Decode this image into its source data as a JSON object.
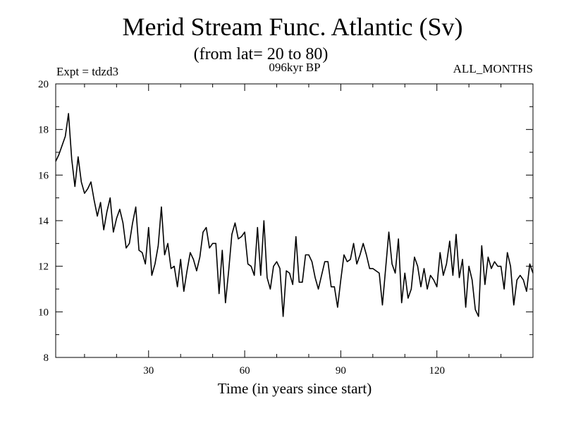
{
  "chart_data": {
    "type": "line",
    "title": "Merid Stream Func. Atlantic (Sv)",
    "subtitle": "(from lat= 20 to 80)",
    "left_note": "Expt = tdzd3",
    "center_note": "096kyr BP",
    "right_note": "ALL_MONTHS",
    "xlabel": "Time (in years since start)",
    "ylabel": "",
    "xlim": [
      1,
      150
    ],
    "ylim": [
      8,
      20
    ],
    "xticks": [
      30,
      60,
      90,
      120
    ],
    "yticks": [
      8,
      10,
      12,
      14,
      16,
      18,
      20
    ],
    "grid": false,
    "series": [
      {
        "name": "Merid Stream Func. Atlantic",
        "color": "#000000",
        "x": [
          1,
          2,
          3,
          4,
          5,
          6,
          7,
          8,
          9,
          10,
          11,
          12,
          13,
          14,
          15,
          16,
          17,
          18,
          19,
          20,
          21,
          22,
          23,
          24,
          25,
          26,
          27,
          28,
          29,
          30,
          31,
          32,
          33,
          34,
          35,
          36,
          37,
          38,
          39,
          40,
          41,
          42,
          43,
          44,
          45,
          46,
          47,
          48,
          49,
          50,
          51,
          52,
          53,
          54,
          55,
          56,
          57,
          58,
          59,
          60,
          61,
          62,
          63,
          64,
          65,
          66,
          67,
          68,
          69,
          70,
          71,
          72,
          73,
          74,
          75,
          76,
          77,
          78,
          79,
          80,
          81,
          82,
          83,
          84,
          85,
          86,
          87,
          88,
          89,
          90,
          91,
          92,
          93,
          94,
          95,
          96,
          97,
          98,
          99,
          100,
          101,
          102,
          103,
          104,
          105,
          106,
          107,
          108,
          109,
          110,
          111,
          112,
          113,
          114,
          115,
          116,
          117,
          118,
          119,
          120,
          121,
          122,
          123,
          124,
          125,
          126,
          127,
          128,
          129,
          130,
          131,
          132,
          133,
          134,
          135,
          136,
          137,
          138,
          139,
          140,
          141,
          142,
          143,
          144,
          145,
          146,
          147,
          148,
          149,
          150
        ],
        "values": [
          16.6,
          16.9,
          17.3,
          17.7,
          18.7,
          16.7,
          15.5,
          16.8,
          15.7,
          15.2,
          15.4,
          15.7,
          14.9,
          14.2,
          14.8,
          13.6,
          14.4,
          15.0,
          13.5,
          14.1,
          14.5,
          13.9,
          12.8,
          13.0,
          13.9,
          14.6,
          12.7,
          12.6,
          12.1,
          13.7,
          11.6,
          12.1,
          12.9,
          14.6,
          12.5,
          13.0,
          11.9,
          12.0,
          11.1,
          12.3,
          10.9,
          11.8,
          12.6,
          12.3,
          11.8,
          12.4,
          13.5,
          13.7,
          12.8,
          13.0,
          13.0,
          10.8,
          12.7,
          10.4,
          11.8,
          13.4,
          13.9,
          13.2,
          13.3,
          13.5,
          12.1,
          12.0,
          11.6,
          13.7,
          11.6,
          14.0,
          11.5,
          11.0,
          12.0,
          12.2,
          11.9,
          9.8,
          11.8,
          11.7,
          11.2,
          13.3,
          11.3,
          11.3,
          12.5,
          12.5,
          12.2,
          11.5,
          11.0,
          11.6,
          12.2,
          12.2,
          11.1,
          11.1,
          10.2,
          11.4,
          12.5,
          12.2,
          12.3,
          13.0,
          12.1,
          12.5,
          13.0,
          12.5,
          11.9,
          11.9,
          11.8,
          11.7,
          10.3,
          11.9,
          13.5,
          12.1,
          11.7,
          13.2,
          10.4,
          11.7,
          10.6,
          11.0,
          12.4,
          12.0,
          11.1,
          11.9,
          11.0,
          11.6,
          11.4,
          11.1,
          12.6,
          11.6,
          12.1,
          13.1,
          11.6,
          13.4,
          11.5,
          12.3,
          10.2,
          12.0,
          11.4,
          10.1,
          9.8,
          12.9,
          11.2,
          12.4,
          11.9,
          12.2,
          12.0,
          12.0,
          11.0,
          12.6,
          12.0,
          10.3,
          11.4,
          11.6,
          11.4,
          10.9,
          12.1,
          11.7
        ]
      }
    ]
  }
}
